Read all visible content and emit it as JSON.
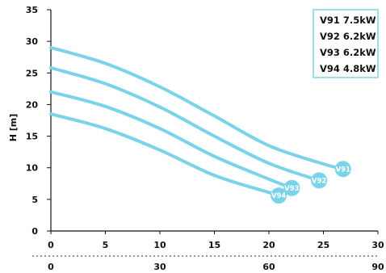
{
  "chart_data": {
    "type": "line",
    "ylabel": "H [m]",
    "xlabel": "",
    "xlim": [
      0,
      30
    ],
    "ylim": [
      0,
      35
    ],
    "x_ticks": [
      "0",
      "5",
      "10",
      "15",
      "20",
      "25",
      "30"
    ],
    "y_ticks": [
      "0",
      "5",
      "10",
      "15",
      "20",
      "25",
      "30",
      "35"
    ],
    "secondary_x_ticks": [
      {
        "label": "0",
        "at": 0
      },
      {
        "label": "30",
        "at": 10
      },
      {
        "label": "60",
        "at": 20
      },
      {
        "label": "90",
        "at": 30
      }
    ],
    "grid": false,
    "legend_position": "top-right",
    "line_color": "#7ad3e8",
    "series": [
      {
        "name": "V91 7.5kW",
        "end_label": "V91",
        "x": [
          0,
          5,
          10,
          15,
          20,
          25,
          26.8
        ],
        "y": [
          29,
          26.5,
          22.8,
          18.2,
          13.5,
          10.6,
          9.8
        ]
      },
      {
        "name": "V92 6.2kW",
        "end_label": "V92",
        "x": [
          0,
          5,
          10,
          15,
          20,
          24.6
        ],
        "y": [
          25.8,
          23.3,
          19.6,
          15.0,
          10.7,
          8.0
        ]
      },
      {
        "name": "V93 6.2kW",
        "end_label": "V93",
        "x": [
          0,
          5,
          10,
          15,
          20,
          22.1
        ],
        "y": [
          22,
          19.7,
          16.2,
          11.8,
          8.2,
          6.8
        ]
      },
      {
        "name": "V94 4.8kW",
        "end_label": "V94",
        "x": [
          0,
          5,
          10,
          15,
          20,
          20.9
        ],
        "y": [
          18.5,
          16.2,
          12.8,
          8.8,
          6.1,
          5.6
        ]
      }
    ]
  }
}
